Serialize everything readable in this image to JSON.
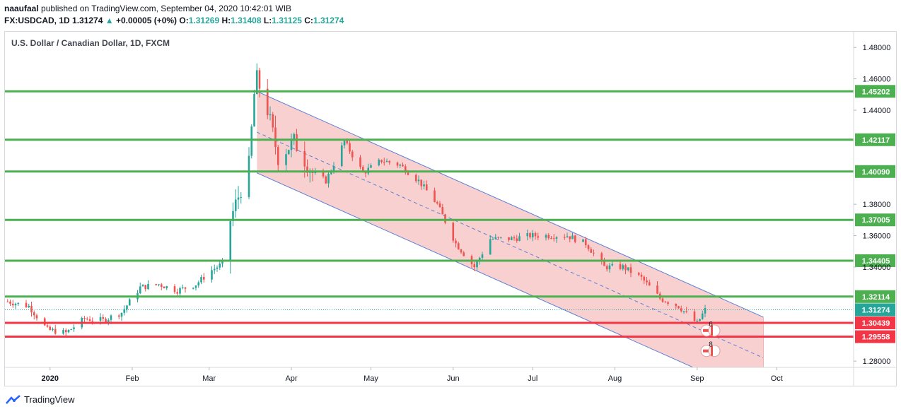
{
  "header": {
    "publisher": "naaufaal",
    "published_text": "published on TradingView.com, September 04, 2020 10:42:01 WIB",
    "symbol": "FX:USDCAD, 1D",
    "last": "1.31274",
    "change": "+0.00005 (+0%)",
    "open_label": "O:",
    "open": "1.31269",
    "high_label": "H:",
    "high": "1.31408",
    "low_label": "L:",
    "low": "1.31125",
    "close_label": "C:",
    "close": "1.31274"
  },
  "pane_title": "U.S. Dollar / Canadian Dollar, 1D, FXCM",
  "footer": {
    "brand": "TradingView"
  },
  "colors": {
    "up": "#26a69a",
    "down": "#ef5350",
    "support": "#4caf50",
    "resistance_red": "#f23645",
    "channel_fill": "#f8c8c8",
    "channel_line": "#5b7fd6"
  },
  "icons": [
    "tradingview-logo-icon",
    "us-flag-icon",
    "canada-flag-icon"
  ],
  "chart_data": {
    "type": "candlestick",
    "title": "U.S. Dollar / Canadian Dollar, 1D, FXCM",
    "ylim": [
      1.276,
      1.49
    ],
    "y_ticks": [
      "1.48000",
      "1.46000",
      "1.44000",
      "1.38000",
      "1.36000",
      "1.34000",
      "1.28000"
    ],
    "x_ticks": [
      "2020",
      "Feb",
      "Mar",
      "Apr",
      "May",
      "Jun",
      "Jul",
      "Aug",
      "Sep",
      "Oct"
    ],
    "x_tick_dates": [
      "2020-01-01",
      "2020-02-01",
      "2020-03-01",
      "2020-04-01",
      "2020-05-01",
      "2020-06-01",
      "2020-07-01",
      "2020-08-01",
      "2020-09-01",
      "2020-10-01"
    ],
    "x_range": [
      "2019-12-15",
      "2020-10-30"
    ],
    "last_price": "1.31274",
    "levels": [
      {
        "label": "1.45202",
        "value": 1.45202,
        "color": "#4caf50"
      },
      {
        "label": "1.42117",
        "value": 1.42117,
        "color": "#4caf50"
      },
      {
        "label": "1.40090",
        "value": 1.4009,
        "color": "#4caf50"
      },
      {
        "label": "1.37005",
        "value": 1.37005,
        "color": "#4caf50"
      },
      {
        "label": "1.34405",
        "value": 1.34405,
        "color": "#4caf50"
      },
      {
        "label": "1.32114",
        "value": 1.32114,
        "color": "#4caf50"
      },
      {
        "label": "1.30439",
        "value": 1.30439,
        "color": "#f23645"
      },
      {
        "label": "1.29558",
        "value": 1.29558,
        "color": "#f23645"
      }
    ],
    "channel": {
      "upper": [
        [
          "2020-03-19",
          1.452
        ],
        [
          "2020-09-26",
          1.308
        ]
      ],
      "lower": [
        [
          "2020-03-19",
          1.4
        ],
        [
          "2020-09-26",
          1.256
        ]
      ],
      "mid": [
        [
          "2020-03-19",
          1.426
        ],
        [
          "2020-09-26",
          1.282
        ]
      ]
    },
    "events": [
      {
        "date": "2020-09-04",
        "label": "6",
        "value": 1.2995
      },
      {
        "date": "2020-09-04",
        "label": "8",
        "value": 1.2865
      }
    ],
    "close_path": [
      [
        "2019-12-16",
        1.318
      ],
      [
        "2019-12-24",
        1.315
      ],
      [
        "2019-12-31",
        1.3
      ],
      [
        "2020-01-07",
        1.298
      ],
      [
        "2020-01-14",
        1.307
      ],
      [
        "2020-01-21",
        1.306
      ],
      [
        "2020-01-28",
        1.311
      ],
      [
        "2020-02-04",
        1.327
      ],
      [
        "2020-02-11",
        1.329
      ],
      [
        "2020-02-18",
        1.325
      ],
      [
        "2020-02-25",
        1.329
      ],
      [
        "2020-03-02",
        1.338
      ],
      [
        "2020-03-06",
        1.342
      ],
      [
        "2020-03-09",
        1.37
      ],
      [
        "2020-03-12",
        1.385
      ],
      [
        "2020-03-16",
        1.405
      ],
      [
        "2020-03-18",
        1.45
      ],
      [
        "2020-03-19",
        1.46
      ],
      [
        "2020-03-23",
        1.44
      ],
      [
        "2020-03-27",
        1.41
      ],
      [
        "2020-04-02",
        1.42
      ],
      [
        "2020-04-09",
        1.4
      ],
      [
        "2020-04-14",
        1.395
      ],
      [
        "2020-04-21",
        1.42
      ],
      [
        "2020-04-28",
        1.4
      ],
      [
        "2020-05-05",
        1.408
      ],
      [
        "2020-05-12",
        1.405
      ],
      [
        "2020-05-19",
        1.395
      ],
      [
        "2020-05-26",
        1.38
      ],
      [
        "2020-06-02",
        1.355
      ],
      [
        "2020-06-09",
        1.34
      ],
      [
        "2020-06-15",
        1.358
      ],
      [
        "2020-06-23",
        1.358
      ],
      [
        "2020-06-30",
        1.36
      ],
      [
        "2020-07-07",
        1.36
      ],
      [
        "2020-07-14",
        1.36
      ],
      [
        "2020-07-21",
        1.355
      ],
      [
        "2020-07-28",
        1.34
      ],
      [
        "2020-08-04",
        1.34
      ],
      [
        "2020-08-11",
        1.333
      ],
      [
        "2020-08-18",
        1.32
      ],
      [
        "2020-08-25",
        1.315
      ],
      [
        "2020-09-01",
        1.304
      ],
      [
        "2020-09-04",
        1.3127
      ]
    ]
  }
}
